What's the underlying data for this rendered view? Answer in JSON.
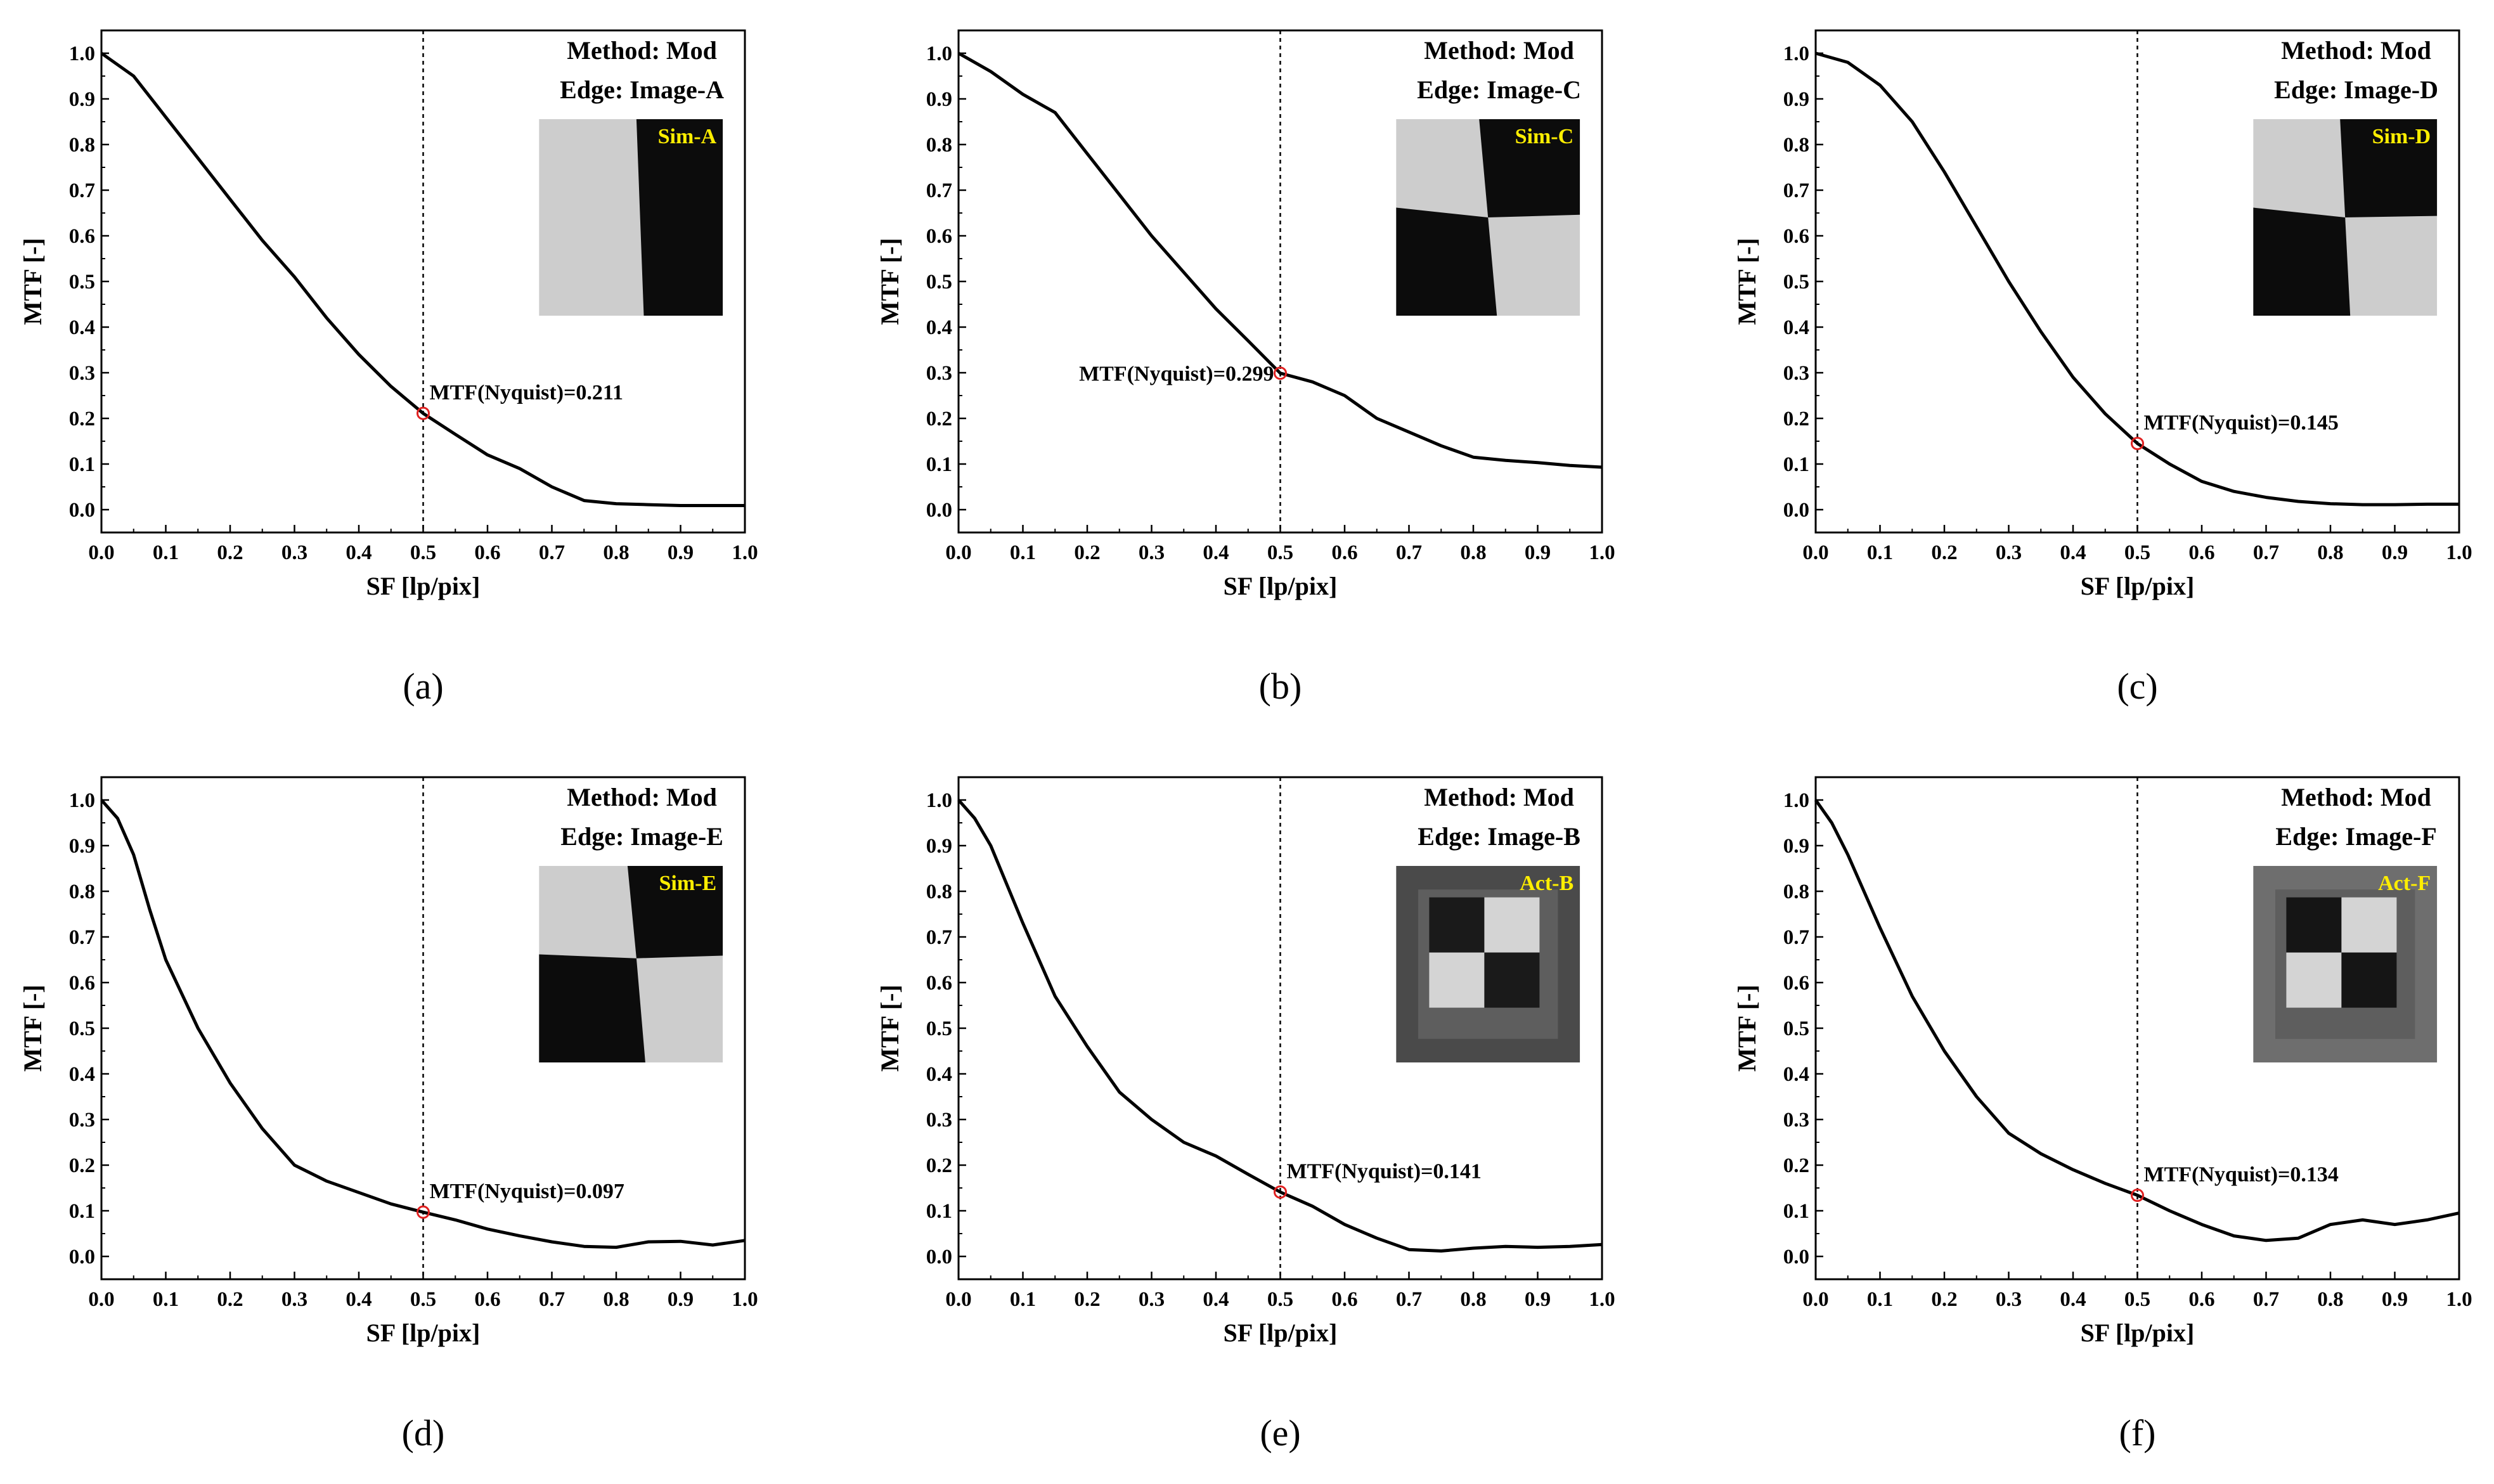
{
  "figure": {
    "description_free": true
  },
  "chart_data": [
    {
      "panel": "(a)",
      "type": "line",
      "title": "",
      "method": "Method: Mod",
      "edge": "Edge: Image-A",
      "inset_label": "Sim-A",
      "inset_style": "sim-a",
      "xlabel": "SF [lp/pix]",
      "ylabel": "MTF [-]",
      "xlim": [
        0,
        1.0
      ],
      "ylim": [
        -0.05,
        1.05
      ],
      "x_ticks": [
        "0.0",
        "0.1",
        "0.2",
        "0.3",
        "0.4",
        "0.5",
        "0.6",
        "0.7",
        "0.8",
        "0.9",
        "1.0"
      ],
      "y_ticks": [
        "0.0",
        "0.1",
        "0.2",
        "0.3",
        "0.4",
        "0.5",
        "0.6",
        "0.7",
        "0.8",
        "0.9",
        "1.0"
      ],
      "nyquist_x": 0.5,
      "nyquist_label": "MTF(Nyquist)=0.211",
      "nyquist_value": 0.211,
      "annotation_side": "right",
      "series": [
        {
          "name": "MTF",
          "x": [
            0,
            0.05,
            0.1,
            0.15,
            0.2,
            0.25,
            0.3,
            0.35,
            0.4,
            0.45,
            0.5,
            0.55,
            0.6,
            0.65,
            0.7,
            0.75,
            0.8,
            0.85,
            0.9,
            0.95,
            1.0
          ],
          "values": [
            1.0,
            0.95,
            0.86,
            0.77,
            0.68,
            0.59,
            0.51,
            0.42,
            0.34,
            0.27,
            0.211,
            0.165,
            0.12,
            0.09,
            0.05,
            0.02,
            0.013,
            0.011,
            0.009,
            0.009,
            0.009
          ]
        }
      ]
    },
    {
      "panel": "(b)",
      "type": "line",
      "title": "",
      "method": "Method: Mod",
      "edge": "Edge: Image-C",
      "inset_label": "Sim-C",
      "inset_style": "sim-c",
      "xlabel": "SF [lp/pix]",
      "ylabel": "MTF [-]",
      "xlim": [
        0,
        1.0
      ],
      "ylim": [
        -0.05,
        1.05
      ],
      "x_ticks": [
        "0.0",
        "0.1",
        "0.2",
        "0.3",
        "0.4",
        "0.5",
        "0.6",
        "0.7",
        "0.8",
        "0.9",
        "1.0"
      ],
      "y_ticks": [
        "0.0",
        "0.1",
        "0.2",
        "0.3",
        "0.4",
        "0.5",
        "0.6",
        "0.7",
        "0.8",
        "0.9",
        "1.0"
      ],
      "nyquist_x": 0.5,
      "nyquist_label": "MTF(Nyquist)=0.299",
      "nyquist_value": 0.299,
      "annotation_side": "left",
      "series": [
        {
          "name": "MTF",
          "x": [
            0,
            0.05,
            0.1,
            0.15,
            0.2,
            0.25,
            0.3,
            0.35,
            0.4,
            0.45,
            0.5,
            0.55,
            0.6,
            0.65,
            0.7,
            0.75,
            0.8,
            0.85,
            0.9,
            0.95,
            1.0
          ],
          "values": [
            1.0,
            0.96,
            0.91,
            0.87,
            0.78,
            0.69,
            0.6,
            0.52,
            0.44,
            0.37,
            0.299,
            0.28,
            0.25,
            0.2,
            0.17,
            0.14,
            0.115,
            0.108,
            0.103,
            0.097,
            0.093
          ]
        }
      ]
    },
    {
      "panel": "(c)",
      "type": "line",
      "title": "",
      "method": "Method: Mod",
      "edge": "Edge: Image-D",
      "inset_label": "Sim-D",
      "inset_style": "sim-d",
      "xlabel": "SF [lp/pix]",
      "ylabel": "MTF [-]",
      "xlim": [
        0,
        1.0
      ],
      "ylim": [
        -0.05,
        1.05
      ],
      "x_ticks": [
        "0.0",
        "0.1",
        "0.2",
        "0.3",
        "0.4",
        "0.5",
        "0.6",
        "0.7",
        "0.8",
        "0.9",
        "1.0"
      ],
      "y_ticks": [
        "0.0",
        "0.1",
        "0.2",
        "0.3",
        "0.4",
        "0.5",
        "0.6",
        "0.7",
        "0.8",
        "0.9",
        "1.0"
      ],
      "nyquist_x": 0.5,
      "nyquist_label": "MTF(Nyquist)=0.145",
      "nyquist_value": 0.145,
      "annotation_side": "right",
      "series": [
        {
          "name": "MTF",
          "x": [
            0,
            0.05,
            0.1,
            0.15,
            0.2,
            0.25,
            0.3,
            0.35,
            0.4,
            0.45,
            0.5,
            0.55,
            0.6,
            0.65,
            0.7,
            0.75,
            0.8,
            0.85,
            0.9,
            0.95,
            1.0
          ],
          "values": [
            1.0,
            0.98,
            0.93,
            0.85,
            0.74,
            0.62,
            0.5,
            0.39,
            0.29,
            0.21,
            0.145,
            0.1,
            0.062,
            0.04,
            0.027,
            0.018,
            0.013,
            0.011,
            0.011,
            0.012,
            0.012
          ]
        }
      ]
    },
    {
      "panel": "(d)",
      "type": "line",
      "title": "",
      "method": "Method: Mod",
      "edge": "Edge: Image-E",
      "inset_label": "Sim-E",
      "inset_style": "sim-e",
      "xlabel": "SF [lp/pix]",
      "ylabel": "MTF [-]",
      "xlim": [
        0,
        1.0
      ],
      "ylim": [
        -0.05,
        1.05
      ],
      "x_ticks": [
        "0.0",
        "0.1",
        "0.2",
        "0.3",
        "0.4",
        "0.5",
        "0.6",
        "0.7",
        "0.8",
        "0.9",
        "1.0"
      ],
      "y_ticks": [
        "0.0",
        "0.1",
        "0.2",
        "0.3",
        "0.4",
        "0.5",
        "0.6",
        "0.7",
        "0.8",
        "0.9",
        "1.0"
      ],
      "nyquist_x": 0.5,
      "nyquist_label": "MTF(Nyquist)=0.097",
      "nyquist_value": 0.097,
      "annotation_side": "right",
      "series": [
        {
          "name": "MTF",
          "x": [
            0,
            0.025,
            0.05,
            0.075,
            0.1,
            0.15,
            0.2,
            0.25,
            0.3,
            0.35,
            0.4,
            0.45,
            0.5,
            0.55,
            0.6,
            0.65,
            0.7,
            0.75,
            0.8,
            0.85,
            0.9,
            0.95,
            1.0
          ],
          "values": [
            1.0,
            0.96,
            0.88,
            0.76,
            0.65,
            0.5,
            0.38,
            0.28,
            0.2,
            0.165,
            0.14,
            0.115,
            0.097,
            0.08,
            0.06,
            0.045,
            0.032,
            0.022,
            0.02,
            0.032,
            0.033,
            0.025,
            0.035
          ]
        }
      ]
    },
    {
      "panel": "(e)",
      "type": "line",
      "title": "",
      "method": "Method: Mod",
      "edge": "Edge: Image-B",
      "inset_label": "Act-B",
      "inset_style": "act-b",
      "xlabel": "SF [lp/pix]",
      "ylabel": "MTF [-]",
      "xlim": [
        0,
        1.0
      ],
      "ylim": [
        -0.05,
        1.05
      ],
      "x_ticks": [
        "0.0",
        "0.1",
        "0.2",
        "0.3",
        "0.4",
        "0.5",
        "0.6",
        "0.7",
        "0.8",
        "0.9",
        "1.0"
      ],
      "y_ticks": [
        "0.0",
        "0.1",
        "0.2",
        "0.3",
        "0.4",
        "0.5",
        "0.6",
        "0.7",
        "0.8",
        "0.9",
        "1.0"
      ],
      "nyquist_x": 0.5,
      "nyquist_label": "MTF(Nyquist)=0.141",
      "nyquist_value": 0.141,
      "annotation_side": "right",
      "series": [
        {
          "name": "MTF",
          "x": [
            0,
            0.025,
            0.05,
            0.1,
            0.15,
            0.2,
            0.25,
            0.3,
            0.35,
            0.4,
            0.45,
            0.5,
            0.55,
            0.6,
            0.65,
            0.7,
            0.75,
            0.8,
            0.85,
            0.9,
            0.95,
            1.0
          ],
          "values": [
            1.0,
            0.96,
            0.9,
            0.73,
            0.57,
            0.46,
            0.36,
            0.3,
            0.25,
            0.22,
            0.18,
            0.141,
            0.11,
            0.07,
            0.04,
            0.015,
            0.012,
            0.018,
            0.022,
            0.02,
            0.022,
            0.026
          ]
        }
      ]
    },
    {
      "panel": "(f)",
      "type": "line",
      "title": "",
      "method": "Method: Mod",
      "edge": "Edge: Image-F",
      "inset_label": "Act-F",
      "inset_style": "act-f",
      "xlabel": "SF [lp/pix]",
      "ylabel": "MTF [-]",
      "xlim": [
        0,
        1.0
      ],
      "ylim": [
        -0.05,
        1.05
      ],
      "x_ticks": [
        "0.0",
        "0.1",
        "0.2",
        "0.3",
        "0.4",
        "0.5",
        "0.6",
        "0.7",
        "0.8",
        "0.9",
        "1.0"
      ],
      "y_ticks": [
        "0.0",
        "0.1",
        "0.2",
        "0.3",
        "0.4",
        "0.5",
        "0.6",
        "0.7",
        "0.8",
        "0.9",
        "1.0"
      ],
      "nyquist_x": 0.5,
      "nyquist_label": "MTF(Nyquist)=0.134",
      "nyquist_value": 0.134,
      "annotation_side": "right",
      "series": [
        {
          "name": "MTF",
          "x": [
            0,
            0.025,
            0.05,
            0.1,
            0.15,
            0.2,
            0.25,
            0.3,
            0.35,
            0.4,
            0.45,
            0.5,
            0.55,
            0.6,
            0.65,
            0.7,
            0.75,
            0.8,
            0.85,
            0.9,
            0.95,
            1.0
          ],
          "values": [
            1.0,
            0.95,
            0.88,
            0.72,
            0.57,
            0.45,
            0.35,
            0.27,
            0.225,
            0.19,
            0.16,
            0.134,
            0.1,
            0.07,
            0.045,
            0.035,
            0.04,
            0.07,
            0.08,
            0.07,
            0.08,
            0.095
          ]
        }
      ]
    }
  ]
}
